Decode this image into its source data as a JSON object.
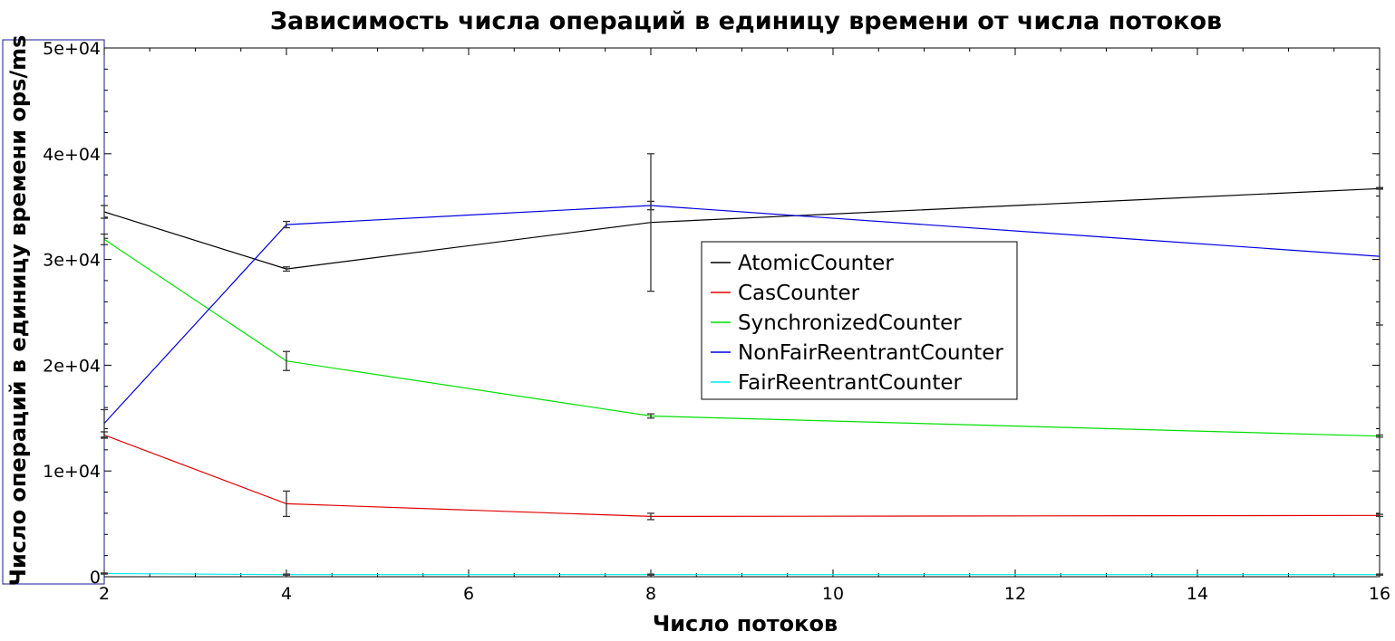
{
  "chart_data": {
    "type": "line",
    "title": "Зависимость числа операций в единицу времени от числа потоков",
    "xlabel": "Число потоков",
    "ylabel": "Число операций в единицу времени ops/ms",
    "x": [
      2,
      4,
      8,
      16
    ],
    "xlim": [
      2,
      16
    ],
    "ylim": [
      0,
      50000
    ],
    "x_ticks": [
      "2",
      "4",
      "6",
      "8",
      "10",
      "12",
      "14",
      "16"
    ],
    "y_ticks": [
      "0",
      "1e+04",
      "2e+04",
      "3e+04",
      "4e+04",
      "5e+04"
    ],
    "grid": false,
    "legend_position": "center",
    "error_bars": true,
    "series": [
      {
        "name": "AtomicCounter",
        "color": "#000000",
        "values": [
          34500,
          29100,
          33500,
          36700
        ],
        "errors": [
          600,
          200,
          6500,
          50
        ]
      },
      {
        "name": "CasCounter",
        "color": "#e00000",
        "values": [
          13400,
          6900,
          5700,
          5800
        ],
        "errors": [
          300,
          1200,
          300,
          100
        ]
      },
      {
        "name": "SynchronizedCounter",
        "color": "#00e000",
        "values": [
          31900,
          20400,
          15200,
          13300
        ],
        "errors": [
          500,
          900,
          200,
          100
        ]
      },
      {
        "name": "NonFairReentrantCounter",
        "color": "#0000e0",
        "values": [
          14500,
          33300,
          35100,
          30300
        ],
        "errors": [
          1300,
          300,
          400,
          6500
        ]
      },
      {
        "name": "FairReentrantCounter",
        "color": "#00e8e8",
        "values": [
          300,
          200,
          200,
          200
        ],
        "errors": [
          50,
          50,
          50,
          50
        ]
      }
    ]
  }
}
